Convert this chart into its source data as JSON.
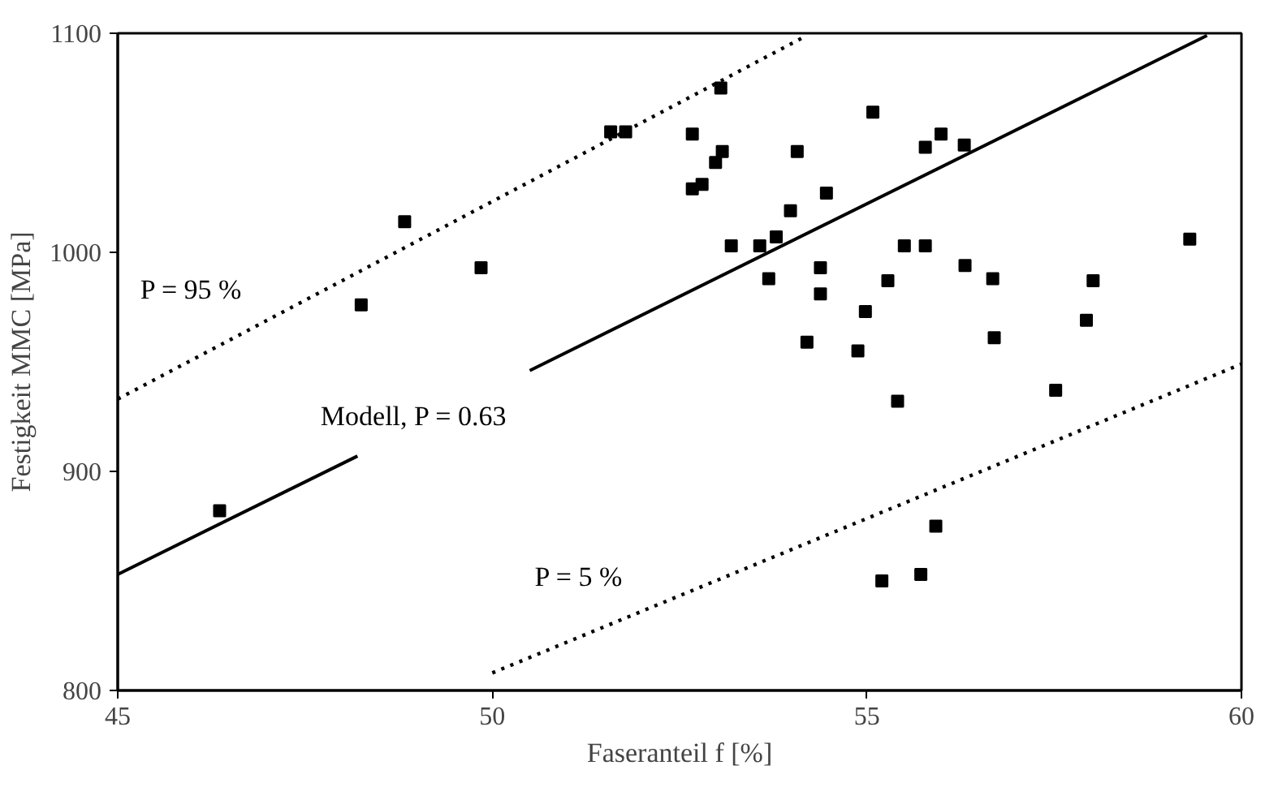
{
  "chart_data": {
    "type": "scatter",
    "xlabel": "Faseranteil f [%]",
    "ylabel": "Festigkeit MMC [MPa]",
    "xlim": [
      45,
      60
    ],
    "xticks": [
      45,
      50,
      55,
      60
    ],
    "ylim": [
      800,
      1100
    ],
    "yticks": [
      800,
      900,
      1000,
      1100
    ],
    "grid": false,
    "series": [
      {
        "marker": "square",
        "color": "#000000",
        "x": [
          46.36,
          48.25,
          48.83,
          49.85,
          51.58,
          51.78,
          53.05,
          52.67,
          53.07,
          52.98,
          52.67,
          52.8,
          54.07,
          55.08,
          55.78,
          55.99,
          56.3,
          54.46,
          53.98,
          53.19,
          53.57,
          53.79,
          53.69,
          54.38,
          54.38,
          54.2,
          54.98,
          54.88,
          55.28,
          55.5,
          55.78,
          56.31,
          56.68,
          56.7,
          55.41,
          57.52,
          57.93,
          58.02,
          59.31,
          55.92,
          55.72,
          55.2
        ],
        "values": [
          882,
          976,
          1014,
          993,
          1055,
          1055,
          1075,
          1054,
          1046,
          1041,
          1029,
          1031,
          1046,
          1064,
          1048,
          1054,
          1049,
          1027,
          1019,
          1003,
          1003,
          1007,
          988,
          993,
          981,
          959,
          973,
          955,
          987,
          1003,
          1003,
          994,
          988,
          961,
          932,
          937,
          969,
          987,
          1006,
          875,
          853,
          850
        ]
      },
      {
        "type": "line",
        "color": "#000000",
        "line_style": "solid",
        "x": [
          45,
          48.2,
          49.3,
          50.5,
          59.54
        ],
        "values": [
          853,
          907,
          null,
          946,
          1099
        ]
      },
      {
        "type": "line",
        "color": "#000000",
        "line_style": "dotted",
        "x": [
          45,
          54.2
        ],
        "values": [
          933,
          1099
        ]
      },
      {
        "type": "line",
        "color": "#000000",
        "line_style": "dotted",
        "x": [
          50,
          60
        ],
        "values": [
          808,
          949
        ]
      }
    ],
    "annotations": [
      "P = 95 %",
      "Modell, P = 0.63",
      "P = 5 %"
    ]
  }
}
